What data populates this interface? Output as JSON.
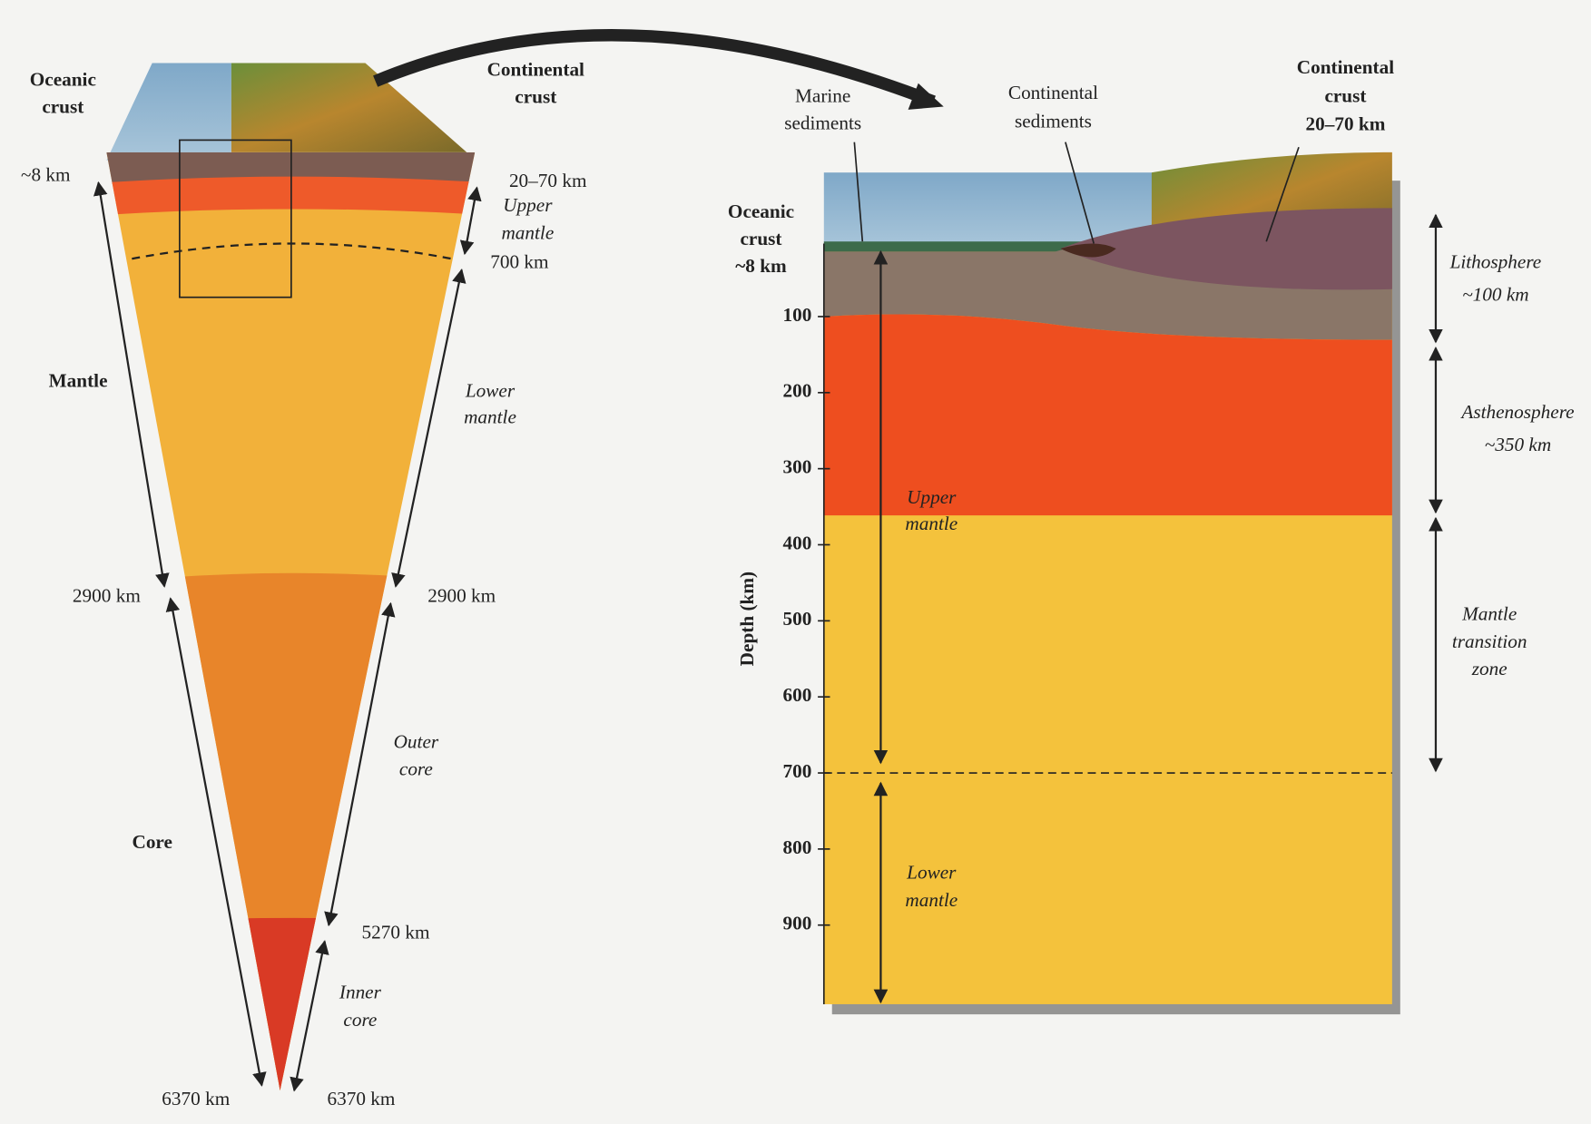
{
  "left": {
    "oceanic_crust": [
      "Oceanic",
      "crust"
    ],
    "continental_crust": [
      "Continental",
      "crust"
    ],
    "oceanic_depth": "~8 km",
    "continental_depth": "20–70 km",
    "upper_mantle": [
      "Upper",
      "mantle"
    ],
    "upper_mantle_depth": "700 km",
    "mantle": "Mantle",
    "lower_mantle": [
      "Lower",
      "mantle"
    ],
    "mantle_depth_left": "2900 km",
    "mantle_depth_right": "2900 km",
    "outer_core": [
      "Outer",
      "core"
    ],
    "core": "Core",
    "outer_core_depth": "5270 km",
    "inner_core": [
      "Inner",
      "core"
    ],
    "center_depth_left": "6370 km",
    "center_depth_right": "6370 km"
  },
  "right": {
    "marine_sediments": [
      "Marine",
      "sediments"
    ],
    "continental_sediments": [
      "Continental",
      "sediments"
    ],
    "continental_crust": [
      "Continental",
      "crust",
      "20–70 km"
    ],
    "oceanic_crust": [
      "Oceanic",
      "crust",
      "~8 km"
    ],
    "depth_axis": {
      "label": "Depth (km)",
      "ticks": [
        100,
        200,
        300,
        400,
        500,
        600,
        700,
        800,
        900
      ]
    },
    "upper_mantle": [
      "Upper",
      "mantle"
    ],
    "lower_mantle": [
      "Lower",
      "mantle"
    ],
    "lithosphere": [
      "Lithosphere",
      "~100 km"
    ],
    "asthenosphere": [
      "Asthenosphere",
      "~350 km"
    ],
    "transition_zone": [
      "Mantle",
      "transition",
      "zone"
    ]
  }
}
